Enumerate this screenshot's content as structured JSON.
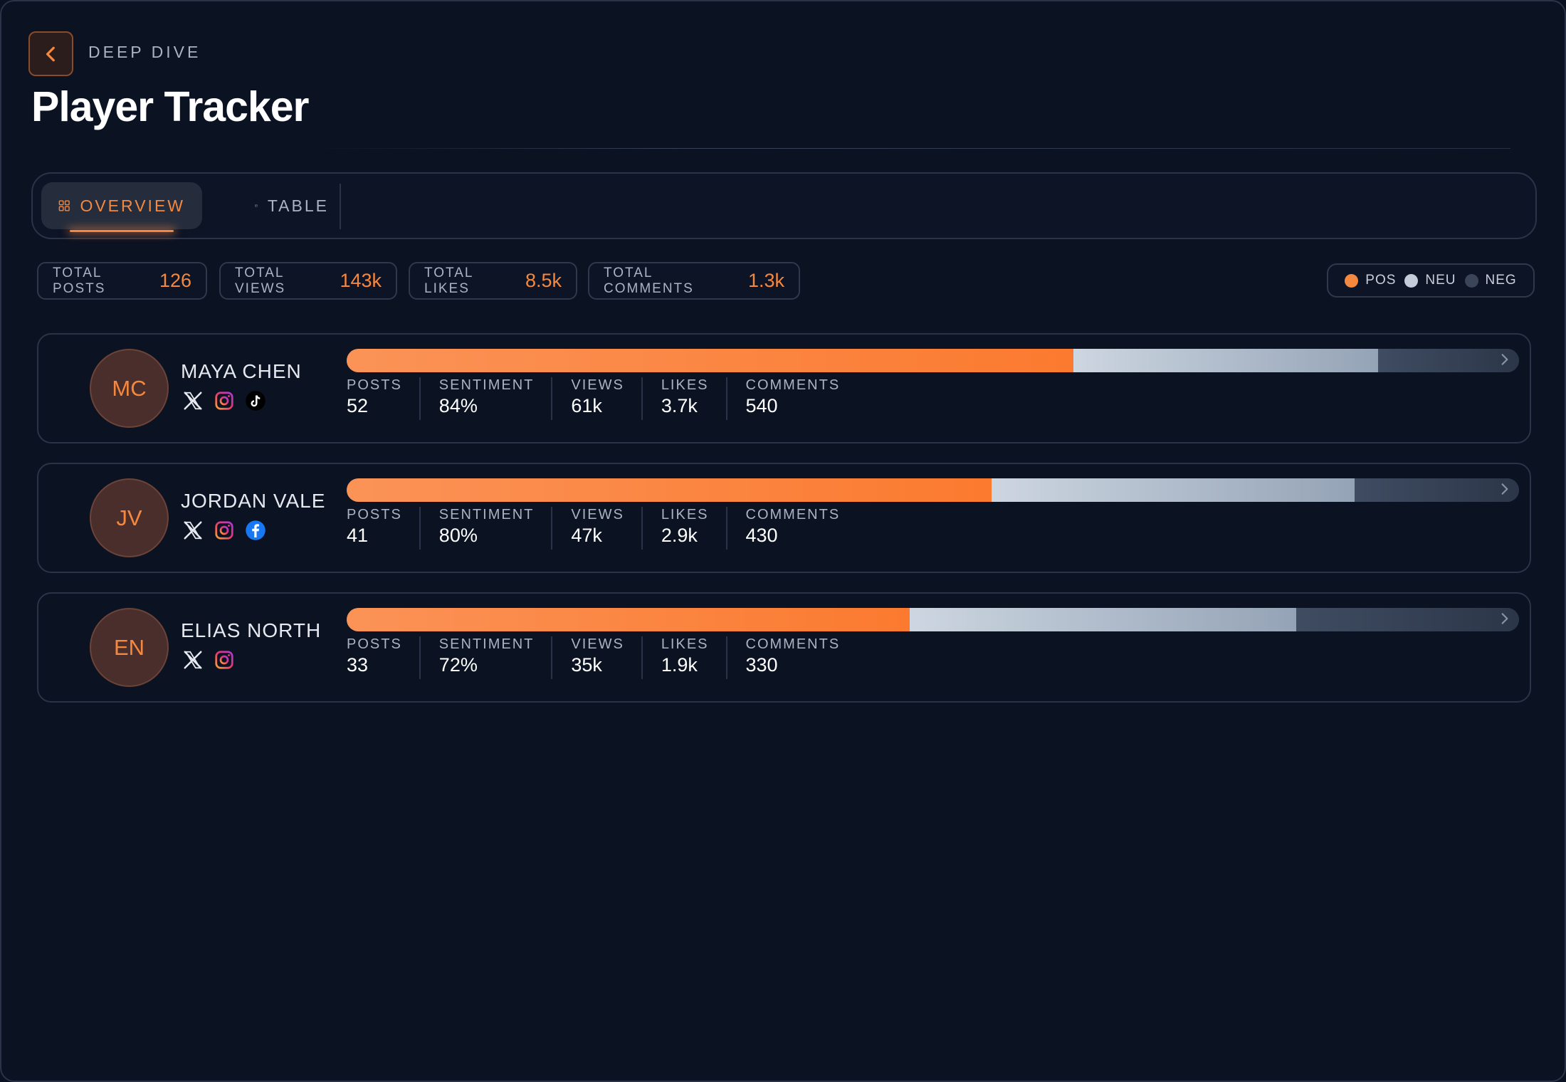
{
  "header": {
    "eyebrow": "DEEP DIVE",
    "title": "Player Tracker",
    "back_icon": "chevron-left-icon"
  },
  "tabs": [
    {
      "label": "OVERVIEW",
      "icon": "grid-icon",
      "active": true
    },
    {
      "label": "TABLE",
      "icon": "table-icon",
      "active": false
    }
  ],
  "stats": [
    {
      "label": "TOTAL POSTS",
      "value": "126"
    },
    {
      "label": "TOTAL VIEWS",
      "value": "143k"
    },
    {
      "label": "TOTAL LIKES",
      "value": "8.5k"
    },
    {
      "label": "TOTAL COMMENTS",
      "value": "1.3k"
    }
  ],
  "legend": [
    {
      "label": "POS",
      "color": "#f5883f"
    },
    {
      "label": "NEU",
      "color": "#c3ccd8"
    },
    {
      "label": "NEG",
      "color": "#3a4559"
    }
  ],
  "metric_labels": {
    "posts": "POSTS",
    "sentiment": "SENTIMENT",
    "views": "VIEWS",
    "likes": "LIKES",
    "comments": "COMMENTS"
  },
  "players": [
    {
      "initials": "MC",
      "name": "MAYA CHEN",
      "socials": [
        "x-icon",
        "instagram-icon",
        "tiktok-icon"
      ],
      "sentiment_split": {
        "pos": 0.62,
        "neu": 0.26,
        "neg": 0.12
      },
      "posts": "52",
      "sentiment": "84%",
      "views": "61k",
      "likes": "3.7k",
      "comments": "540"
    },
    {
      "initials": "JV",
      "name": "JORDAN VALE",
      "socials": [
        "x-icon",
        "instagram-icon",
        "facebook-icon"
      ],
      "sentiment_split": {
        "pos": 0.55,
        "neu": 0.31,
        "neg": 0.14
      },
      "posts": "41",
      "sentiment": "80%",
      "views": "47k",
      "likes": "2.9k",
      "comments": "430"
    },
    {
      "initials": "EN",
      "name": "ELIAS NORTH",
      "socials": [
        "x-icon",
        "instagram-icon"
      ],
      "sentiment_split": {
        "pos": 0.48,
        "neu": 0.33,
        "neg": 0.19
      },
      "posts": "33",
      "sentiment": "72%",
      "views": "35k",
      "likes": "1.9k",
      "comments": "330"
    }
  ]
}
